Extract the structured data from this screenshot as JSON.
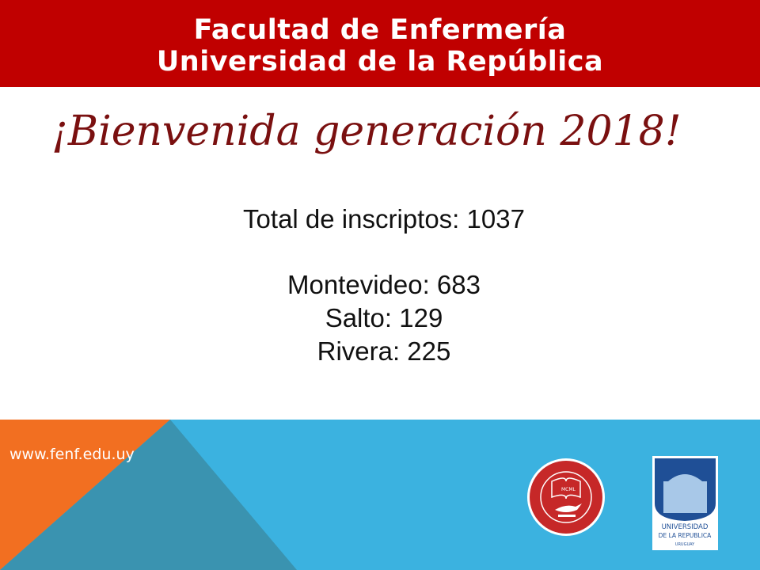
{
  "header": {
    "line1": "Facultad de Enfermería",
    "line2": "Universidad de la República"
  },
  "welcome": "¡Bienvenida generación 2018!",
  "stats": {
    "total": "Total de inscriptos: 1037",
    "items": [
      "Montevideo: 683",
      "Salto: 129",
      "Rivera: 225"
    ]
  },
  "footer": {
    "url": "www.fenf.edu.uy",
    "logo_fenf_text": "FACULTAD DE ENFERMERIA",
    "logo_fenf_year": "MCML",
    "logo_udelar": {
      "line1": "UNIVERSIDAD",
      "line2": "DE LA REPUBLICA",
      "line3": "URUGUAY"
    }
  },
  "colors": {
    "header": "#c00000",
    "title": "#7a1010",
    "blue": "#3bb2e0",
    "teal": "#3a93b0",
    "orange": "#f26f21"
  }
}
